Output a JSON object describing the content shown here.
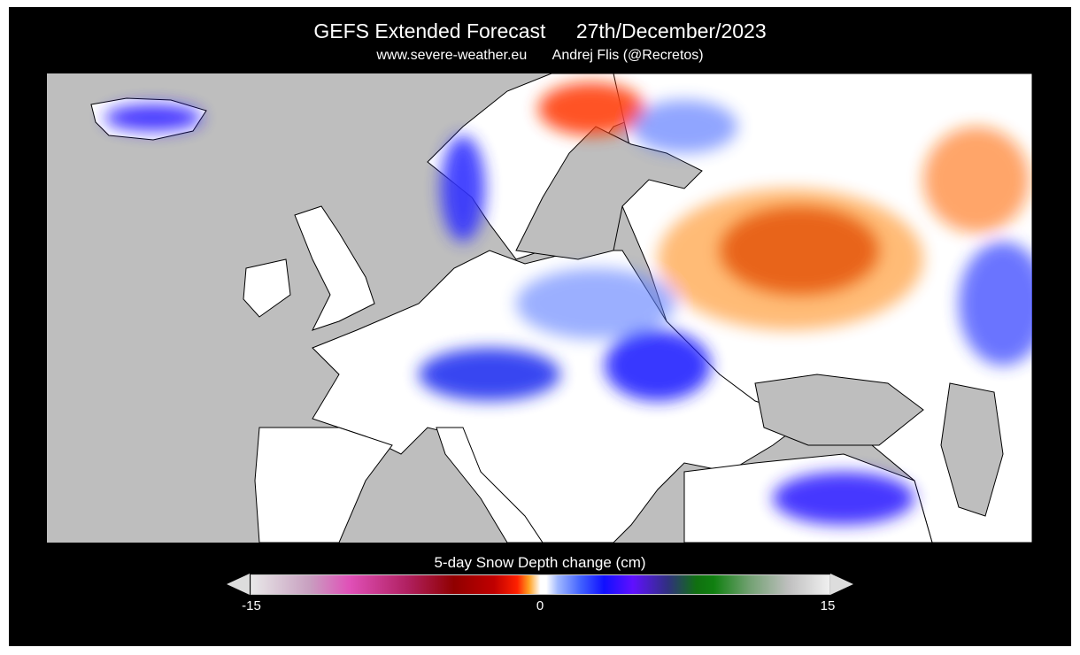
{
  "header": {
    "title": "GEFS Extended Forecast",
    "date": "27th/December/2023",
    "website": "www.severe-weather.eu",
    "author": "Andrej Flis (@Recretos)"
  },
  "map": {
    "region": "Europe",
    "ocean_color": "#bebebe",
    "land_no_change_color": "#ffffff"
  },
  "colorbar": {
    "label": "5-day Snow Depth change (cm)",
    "min_label": "-15",
    "mid_label": "0",
    "max_label": "15",
    "range": [
      -15,
      15
    ],
    "colors": [
      "#e8e8e8",
      "#e050b8",
      "#900000",
      "#ff2000",
      "#ffffff",
      "#1010ff",
      "#6010ff",
      "#108010",
      "#f0f0f0"
    ]
  }
}
